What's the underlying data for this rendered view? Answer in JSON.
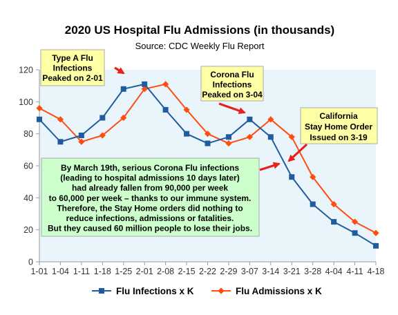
{
  "chart_data": {
    "type": "line",
    "title": "2020 US Hospital Flu Admissions (in thousands)",
    "subtitle": "Source: CDC Weekly Flu Report",
    "xlabel": "",
    "ylabel": "",
    "categories": [
      "1-01",
      "1-04",
      "1-11",
      "1-18",
      "1-25",
      "2-01",
      "2-08",
      "2-15",
      "2-22",
      "2-29",
      "3-07",
      "3-14",
      "3-21",
      "3-28",
      "4-04",
      "4-11",
      "4-18"
    ],
    "ylim": [
      0,
      120
    ],
    "yticks": [
      0,
      20,
      40,
      60,
      80,
      100,
      120
    ],
    "grid": false,
    "legend_position": "bottom",
    "series": [
      {
        "name": "Flu Infections x K",
        "color": "#1f5b9e",
        "marker": "square",
        "values": [
          89,
          75,
          79,
          90,
          108,
          111,
          95,
          80,
          74,
          78,
          89,
          78,
          53,
          36,
          25,
          18,
          10
        ]
      },
      {
        "name": "Flu Admissions x K",
        "color": "#ff4d0f",
        "marker": "diamond",
        "values": [
          96,
          89,
          75,
          79,
          90,
          108,
          111,
          95,
          80,
          74,
          78,
          89,
          78,
          53,
          36,
          25,
          18
        ]
      }
    ],
    "annotations": [
      {
        "id": "type-a",
        "lines": [
          "Type A Flu",
          "Infections",
          "Peaked on 2-01"
        ]
      },
      {
        "id": "corona",
        "lines": [
          "Corona Flu",
          "Infections",
          "Peaked on 3-04"
        ]
      },
      {
        "id": "california",
        "lines": [
          "California",
          "Stay Home Order",
          "Issued on 3-19"
        ]
      },
      {
        "id": "summary",
        "lines": [
          "By March 19th, serious Corona Flu infections",
          "(leading to hospital admissions 10 days later)",
          "had already fallen from 90,000 per week",
          "to 60,000 per week – thanks to our immune system.",
          "Therefore, the Stay Home orders did nothing to",
          "reduce infections, admissions or fatalities.",
          "But they caused 60 million people to lose their jobs."
        ]
      }
    ],
    "colors": {
      "plot_background": "#eaf5fb",
      "note_yellow": "#ffffa6",
      "note_green": "#ccffcc",
      "arrow": "#e8221a"
    }
  }
}
